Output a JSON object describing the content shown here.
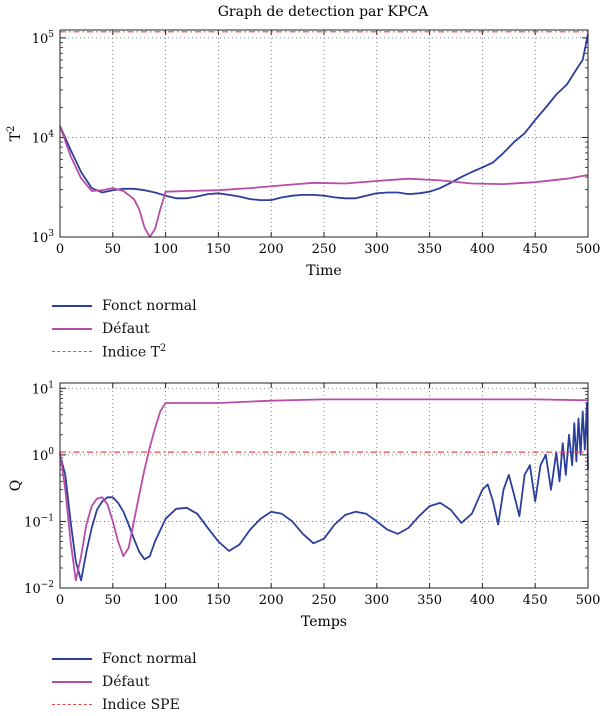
{
  "title": "Graph de detection par KPCA",
  "chart_data": [
    {
      "type": "line",
      "yscale": "log",
      "xlabel": "Time",
      "ylabel": "T2",
      "xlim": [
        0,
        500
      ],
      "ylim": [
        1000,
        120000
      ],
      "x_ticks": [
        0,
        50,
        100,
        150,
        200,
        250,
        300,
        350,
        400,
        450,
        500
      ],
      "y_ticks": [
        {
          "value": 1000,
          "base": "10",
          "exp": "3"
        },
        {
          "value": 10000,
          "base": "10",
          "exp": "4"
        },
        {
          "value": 100000,
          "base": "10",
          "exp": "5"
        }
      ],
      "grid": true,
      "legend_position": "below",
      "series": [
        {
          "name": "Fonct normal",
          "color": "#2b3f9b",
          "style": "solid",
          "x": [
            0,
            10,
            20,
            30,
            40,
            50,
            60,
            70,
            80,
            90,
            100,
            110,
            120,
            130,
            140,
            150,
            160,
            170,
            180,
            190,
            200,
            210,
            220,
            230,
            240,
            250,
            260,
            270,
            280,
            290,
            300,
            310,
            320,
            330,
            340,
            350,
            360,
            370,
            380,
            390,
            400,
            410,
            420,
            430,
            440,
            450,
            460,
            470,
            480,
            490,
            495,
            500
          ],
          "y": [
            13000,
            7500,
            4500,
            3100,
            2800,
            2950,
            3050,
            3050,
            2950,
            2800,
            2600,
            2450,
            2450,
            2550,
            2700,
            2750,
            2650,
            2550,
            2400,
            2350,
            2350,
            2500,
            2600,
            2650,
            2650,
            2600,
            2500,
            2450,
            2450,
            2600,
            2750,
            2800,
            2800,
            2700,
            2750,
            2850,
            3100,
            3500,
            4000,
            4500,
            5000,
            5600,
            7000,
            9000,
            11000,
            15000,
            20000,
            27000,
            34000,
            50000,
            60000,
            110000
          ]
        },
        {
          "name": "Défaut",
          "color": "#b84da8",
          "style": "solid",
          "x": [
            0,
            10,
            20,
            30,
            40,
            50,
            60,
            70,
            75,
            80,
            85,
            90,
            95,
            100,
            120,
            150,
            180,
            210,
            240,
            270,
            300,
            330,
            360,
            390,
            420,
            450,
            480,
            500
          ],
          "y": [
            13000,
            6500,
            3900,
            2900,
            2950,
            3100,
            2900,
            2400,
            1900,
            1250,
            1000,
            1200,
            1900,
            2850,
            2900,
            2950,
            3100,
            3300,
            3500,
            3450,
            3650,
            3850,
            3700,
            3450,
            3400,
            3550,
            3850,
            4200
          ]
        },
        {
          "name": "Indice T2",
          "color": "#e8474b",
          "style": "dashdot",
          "x": [
            0,
            500
          ],
          "y": [
            115000,
            115000
          ]
        }
      ]
    },
    {
      "type": "line",
      "yscale": "log",
      "xlabel": "Temps",
      "ylabel": "Q",
      "xlim": [
        0,
        500
      ],
      "ylim": [
        0.01,
        12
      ],
      "x_ticks": [
        0,
        50,
        100,
        150,
        200,
        250,
        300,
        350,
        400,
        450,
        500
      ],
      "y_ticks": [
        {
          "value": 0.01,
          "base": "10",
          "exp": "−2"
        },
        {
          "value": 0.1,
          "base": "10",
          "exp": "−1"
        },
        {
          "value": 1,
          "base": "10",
          "exp": "0"
        },
        {
          "value": 10,
          "base": "10",
          "exp": "1"
        }
      ],
      "grid": true,
      "legend_position": "below",
      "series": [
        {
          "name": "Fonct normal",
          "color": "#2b3f9b",
          "style": "solid",
          "x": [
            0,
            5,
            10,
            15,
            20,
            25,
            30,
            35,
            40,
            45,
            50,
            55,
            60,
            65,
            70,
            75,
            80,
            85,
            90,
            100,
            110,
            120,
            130,
            140,
            150,
            160,
            170,
            180,
            190,
            200,
            210,
            220,
            230,
            240,
            250,
            260,
            270,
            280,
            290,
            300,
            310,
            320,
            330,
            340,
            350,
            360,
            370,
            380,
            390,
            400,
            405,
            410,
            415,
            420,
            425,
            430,
            435,
            440,
            445,
            450,
            455,
            460,
            465,
            470,
            473,
            476,
            479,
            482,
            485,
            487,
            489,
            491,
            493,
            495,
            497,
            499,
            500
          ],
          "y": [
            1.0,
            0.5,
            0.1,
            0.025,
            0.013,
            0.035,
            0.08,
            0.15,
            0.2,
            0.23,
            0.23,
            0.19,
            0.14,
            0.09,
            0.055,
            0.035,
            0.027,
            0.03,
            0.05,
            0.11,
            0.155,
            0.16,
            0.13,
            0.08,
            0.05,
            0.036,
            0.045,
            0.075,
            0.11,
            0.14,
            0.13,
            0.1,
            0.065,
            0.047,
            0.055,
            0.09,
            0.125,
            0.14,
            0.13,
            0.1,
            0.075,
            0.065,
            0.08,
            0.12,
            0.17,
            0.19,
            0.15,
            0.095,
            0.13,
            0.3,
            0.36,
            0.2,
            0.09,
            0.3,
            0.5,
            0.25,
            0.12,
            0.5,
            0.7,
            0.2,
            0.7,
            1.0,
            0.3,
            1.1,
            0.4,
            1.5,
            0.5,
            2.0,
            0.7,
            3.0,
            0.8,
            3.5,
            1.0,
            4.5,
            1.2,
            6.0,
            0.6
          ]
        },
        {
          "name": "Défaut",
          "color": "#b84da8",
          "style": "solid",
          "x": [
            0,
            5,
            10,
            15,
            20,
            25,
            30,
            35,
            40,
            45,
            50,
            55,
            60,
            65,
            70,
            75,
            80,
            85,
            90,
            95,
            100,
            120,
            150,
            200,
            250,
            300,
            350,
            400,
            450,
            500
          ],
          "y": [
            1.1,
            0.3,
            0.05,
            0.013,
            0.03,
            0.09,
            0.17,
            0.22,
            0.23,
            0.18,
            0.1,
            0.05,
            0.03,
            0.04,
            0.1,
            0.25,
            0.6,
            1.3,
            2.5,
            4.5,
            6.0,
            6.0,
            6.0,
            6.5,
            6.8,
            6.8,
            6.8,
            6.8,
            6.8,
            6.6
          ]
        },
        {
          "name": "Indice SPE",
          "color": "#e8474b",
          "style": "dashdot",
          "x": [
            0,
            500
          ],
          "y": [
            1.1,
            1.1
          ]
        }
      ]
    }
  ],
  "legend1": {
    "items": [
      {
        "label": "Fonct normal",
        "color": "#2b3f9b",
        "style": "solid"
      },
      {
        "label": "Défaut",
        "color": "#b84da8",
        "style": "solid"
      },
      {
        "label": "Indice T2",
        "color": "#e8474b",
        "style": "dashdot"
      }
    ]
  },
  "legend2": {
    "items": [
      {
        "label": "Fonct normal",
        "color": "#2b3f9b",
        "style": "solid"
      },
      {
        "label": "Défaut",
        "color": "#b84da8",
        "style": "solid"
      },
      {
        "label": "Indice SPE",
        "color": "#e8474b",
        "style": "dashdot"
      }
    ]
  }
}
